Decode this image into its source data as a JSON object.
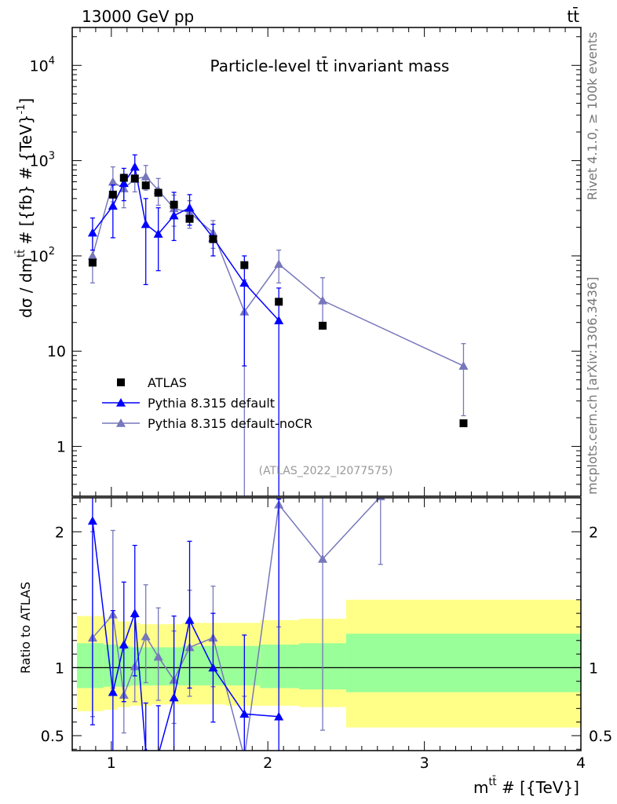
{
  "header": {
    "energy_label": "13000 GeV pp",
    "process_label": "tt̄"
  },
  "side_text": {
    "rivet": "Rivet 4.1.0, ≥ 100k events",
    "mcplots": "mcplots.cern.ch [arXiv:1306.3436]"
  },
  "chart_data": [
    {
      "type": "scatter",
      "panel": "main",
      "title": "Particle-level tt̄ invariant mass",
      "analysis_label": "(ATLAS_2022_I2077575)",
      "ylabel": "dσ / dm^{tt̄} # [{fb} # {TeV}^{-1}]",
      "yscale": "log",
      "xlim": [
        0.75,
        4.0
      ],
      "ylim": [
        0.3,
        25000
      ],
      "y_ticks": [
        {
          "value": 10000,
          "base": "10",
          "exp": "4"
        },
        {
          "value": 1000,
          "base": "10",
          "exp": "3"
        },
        {
          "value": 100,
          "base": "10",
          "exp": "2"
        },
        {
          "value": 10,
          "base": "10",
          "exp": ""
        },
        {
          "value": 1,
          "base": "1",
          "exp": ""
        }
      ],
      "legend": [
        {
          "label": "ATLAS",
          "color": "#000000",
          "marker": "square"
        },
        {
          "label": "Pythia 8.315 default",
          "color": "#0000ff",
          "marker": "triangle"
        },
        {
          "label": "Pythia 8.315 default-noCR",
          "color": "#7777bb",
          "marker": "triangle"
        }
      ],
      "series": [
        {
          "name": "ATLAS",
          "x": [
            0.88,
            1.01,
            1.08,
            1.15,
            1.22,
            1.3,
            1.4,
            1.5,
            1.65,
            1.85,
            2.07,
            2.35,
            3.25
          ],
          "values": [
            85,
            440,
            660,
            650,
            550,
            460,
            345,
            245,
            150,
            80,
            33,
            18.5,
            1.75
          ]
        },
        {
          "name": "Pythia 8.315 default",
          "x": [
            0.88,
            1.01,
            1.08,
            1.15,
            1.22,
            1.3,
            1.4,
            1.5,
            1.65,
            1.85,
            2.07
          ],
          "values": [
            175,
            335,
            580,
            860,
            215,
            170,
            265,
            320,
            155,
            52,
            21
          ],
          "err_low": [
            60,
            180,
            200,
            260,
            165,
            100,
            120,
            110,
            55,
            45,
            20.9
          ],
          "err_high": [
            75,
            220,
            250,
            290,
            185,
            150,
            200,
            120,
            60,
            48,
            25
          ]
        },
        {
          "name": "Pythia 8.315 default-noCR",
          "x": [
            0.88,
            1.01,
            1.08,
            1.15,
            1.22,
            1.3,
            1.4,
            1.5,
            1.65,
            1.85,
            2.07,
            2.35,
            3.25
          ],
          "values": [
            100,
            600,
            510,
            640,
            680,
            490,
            315,
            285,
            175,
            26,
            82,
            34,
            7
          ],
          "err_low": [
            48,
            230,
            190,
            170,
            190,
            150,
            110,
            90,
            55,
            25.9,
            30,
            15,
            4.9
          ],
          "err_high": [
            65,
            260,
            210,
            220,
            210,
            160,
            120,
            95,
            60,
            30,
            33,
            25,
            5
          ]
        }
      ]
    },
    {
      "type": "line",
      "panel": "ratio",
      "ylabel": "Ratio to ATLAS",
      "xlabel": "m^{tt̄} # [{TeV}]",
      "xlim": [
        0.75,
        4.0
      ],
      "ylim": [
        0.39,
        2.25
      ],
      "x_ticks": [
        1,
        2,
        3,
        4
      ],
      "y_ticks": [
        0.5,
        1,
        2
      ],
      "reference_line": 1.0,
      "uncertainty_bands": {
        "bin_edges": [
          0.78,
          0.95,
          1.04,
          1.12,
          1.18,
          1.26,
          1.35,
          1.45,
          1.58,
          1.73,
          1.95,
          2.2,
          2.5,
          4.0
        ],
        "inner": [
          [
            0.85,
            1.18
          ],
          [
            0.86,
            1.17
          ],
          [
            0.86,
            1.16
          ],
          [
            0.87,
            1.15
          ],
          [
            0.87,
            1.15
          ],
          [
            0.87,
            1.15
          ],
          [
            0.87,
            1.15
          ],
          [
            0.87,
            1.16
          ],
          [
            0.87,
            1.16
          ],
          [
            0.87,
            1.16
          ],
          [
            0.85,
            1.17
          ],
          [
            0.84,
            1.18
          ],
          [
            0.82,
            1.25
          ]
        ],
        "outer": [
          [
            0.68,
            1.38
          ],
          [
            0.69,
            1.36
          ],
          [
            0.71,
            1.34
          ],
          [
            0.72,
            1.33
          ],
          [
            0.72,
            1.32
          ],
          [
            0.73,
            1.32
          ],
          [
            0.73,
            1.32
          ],
          [
            0.73,
            1.33
          ],
          [
            0.73,
            1.33
          ],
          [
            0.72,
            1.33
          ],
          [
            0.72,
            1.35
          ],
          [
            0.71,
            1.36
          ],
          [
            0.56,
            1.5
          ]
        ],
        "inner_color": "#99ff99",
        "outer_color": "#ffff88"
      },
      "series": [
        {
          "name": "Pythia 8.315 default",
          "x": [
            0.88,
            1.01,
            1.08,
            1.15,
            1.22,
            1.3,
            1.4,
            1.5,
            1.65,
            1.85,
            2.07
          ],
          "values": [
            2.08,
            0.82,
            1.17,
            1.4,
            0.38,
            0.36,
            0.78,
            1.35,
            1.0,
            0.66,
            0.64
          ],
          "err_low": [
            1.5,
            0.44,
            0.42,
            0.46,
            0.32,
            0.3,
            0.5,
            0.5,
            0.4,
            0.6,
            0.63
          ],
          "err_high": [
            0.8,
            0.6,
            0.46,
            0.5,
            0.36,
            0.36,
            0.6,
            0.58,
            0.4,
            0.58,
            1.6
          ]
        },
        {
          "name": "Pythia 8.315 default-noCR",
          "x": [
            0.88,
            1.01,
            1.08,
            1.15,
            1.22,
            1.3,
            1.4,
            1.5,
            1.65,
            1.85,
            2.07,
            2.35,
            2.72
          ],
          "values": [
            1.22,
            1.39,
            0.8,
            1.01,
            1.23,
            1.08,
            0.91,
            1.15,
            1.22,
            0.34,
            2.2,
            1.8,
            2.26
          ],
          "err_low": [
            0.58,
            0.54,
            0.28,
            0.26,
            0.34,
            0.32,
            0.32,
            0.36,
            0.36,
            0.33,
            0.9,
            1.26,
            0.5
          ],
          "err_high": [
            0.78,
            0.62,
            0.34,
            0.36,
            0.38,
            0.36,
            0.36,
            0.42,
            0.38,
            0.45,
            1.5,
            0.9,
            0.5
          ]
        }
      ]
    }
  ]
}
